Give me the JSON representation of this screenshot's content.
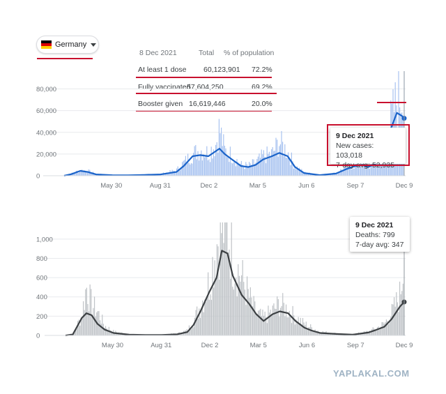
{
  "country_selector": {
    "label": "Germany",
    "flag_colors": [
      "#000000",
      "#dd0000",
      "#ffce00"
    ]
  },
  "vaccination": {
    "date": "8 Dec 2021",
    "col_total": "Total",
    "col_percent": "% of population",
    "rows": [
      {
        "label": "At least 1 dose",
        "total": "60,123,901",
        "percent": "72.2%"
      },
      {
        "label": "Fully vaccinated",
        "total": "57,604,250",
        "percent": "69.2%"
      },
      {
        "label": "Booster given",
        "total": "16,619,446",
        "percent": "20.0%"
      }
    ]
  },
  "cases_tooltip": {
    "date": "9 Dec 2021",
    "line1": "New cases: 103,018",
    "line2": "7-day avg: 52,935"
  },
  "deaths_tooltip": {
    "date": "9 Dec 2021",
    "line1": "Deaths: 799",
    "line2": "7-day avg: 347"
  },
  "watermark": "YAPLAKAL.COM",
  "colors": {
    "cases_bar": "#a8c3f0",
    "cases_line": "#1a63c9",
    "deaths_bar": "#bfc3c7",
    "deaths_line": "#3c4043",
    "highlight": "#c8102e"
  },
  "chart_data": [
    {
      "type": "line",
      "x_axis_labels": [
        "May 30",
        "Aug 31",
        "Dec 2",
        "Mar 5",
        "Jun 6",
        "Sep 7",
        "Dec 9"
      ],
      "y_ticks": [
        0,
        20000,
        40000,
        60000,
        80000
      ],
      "y_tick_labels": [
        "0",
        "20,000",
        "40,000",
        "60,000",
        "80,000"
      ],
      "ylim": [
        0,
        90000
      ],
      "series": [
        {
          "name": "New cases",
          "style": "bars",
          "x": [
            "2020-03-01",
            "2020-03-15",
            "2020-04-01",
            "2020-04-15",
            "2020-05-01",
            "2020-06-01",
            "2020-07-01",
            "2020-08-01",
            "2020-09-01",
            "2020-10-01",
            "2020-10-15",
            "2020-11-01",
            "2020-11-15",
            "2020-12-01",
            "2020-12-15",
            "2020-12-22",
            "2021-01-01",
            "2021-01-15",
            "2021-02-01",
            "2021-02-15",
            "2021-03-01",
            "2021-03-15",
            "2021-04-01",
            "2021-04-15",
            "2021-05-01",
            "2021-05-15",
            "2021-06-01",
            "2021-07-01",
            "2021-08-01",
            "2021-08-20",
            "2021-09-07",
            "2021-09-20",
            "2021-10-01",
            "2021-10-15",
            "2021-11-01",
            "2021-11-15",
            "2021-11-25",
            "2021-12-05",
            "2021-12-09"
          ],
          "values": [
            0,
            2000,
            5000,
            4500,
            1500,
            700,
            500,
            1200,
            1500,
            5000,
            12000,
            20000,
            24000,
            21000,
            29000,
            44000,
            23000,
            19000,
            10000,
            9000,
            12000,
            18000,
            20000,
            31000,
            22000,
            9000,
            3000,
            700,
            2500,
            8000,
            10000,
            11000,
            9000,
            12000,
            28000,
            53000,
            70000,
            76000,
            103018
          ]
        },
        {
          "name": "7-day avg",
          "style": "line",
          "x": [
            "2020-03-01",
            "2020-03-15",
            "2020-04-01",
            "2020-04-15",
            "2020-05-01",
            "2020-06-01",
            "2020-07-01",
            "2020-08-01",
            "2020-09-01",
            "2020-10-01",
            "2020-10-15",
            "2020-11-01",
            "2020-11-15",
            "2020-12-01",
            "2020-12-22",
            "2021-01-01",
            "2021-01-15",
            "2021-02-01",
            "2021-02-15",
            "2021-03-01",
            "2021-03-15",
            "2021-04-01",
            "2021-04-15",
            "2021-05-01",
            "2021-05-15",
            "2021-06-01",
            "2021-07-01",
            "2021-08-01",
            "2021-08-20",
            "2021-09-07",
            "2021-09-20",
            "2021-10-01",
            "2021-10-15",
            "2021-11-01",
            "2021-11-15",
            "2021-11-25",
            "2021-12-05",
            "2021-12-09"
          ],
          "values": [
            0,
            1500,
            4500,
            3500,
            1200,
            500,
            400,
            800,
            1200,
            3500,
            9000,
            18000,
            19000,
            18000,
            25000,
            20000,
            15000,
            9000,
            8000,
            10000,
            15000,
            18000,
            21000,
            18000,
            8000,
            2500,
            600,
            2000,
            6000,
            9000,
            10000,
            8000,
            11000,
            25000,
            45000,
            58000,
            55000,
            52935
          ]
        }
      ]
    },
    {
      "type": "line",
      "x_axis_labels": [
        "May 30",
        "Aug 31",
        "Dec 2",
        "Mar 5",
        "Jun 6",
        "Sep 7",
        "Dec 9"
      ],
      "y_ticks": [
        0,
        200,
        400,
        600,
        800,
        1000
      ],
      "y_tick_labels": [
        "0",
        "200",
        "400",
        "600",
        "800",
        "1,000"
      ],
      "ylim": [
        0,
        1100
      ],
      "series": [
        {
          "name": "Deaths",
          "style": "bars",
          "x": [
            "2020-03-01",
            "2020-03-15",
            "2020-04-01",
            "2020-04-10",
            "2020-04-20",
            "2020-05-01",
            "2020-05-15",
            "2020-06-01",
            "2020-07-01",
            "2020-08-01",
            "2020-09-01",
            "2020-10-01",
            "2020-10-20",
            "2020-11-01",
            "2020-11-15",
            "2020-12-01",
            "2020-12-15",
            "2020-12-25",
            "2021-01-05",
            "2021-01-15",
            "2021-02-01",
            "2021-02-15",
            "2021-03-01",
            "2021-03-15",
            "2021-04-01",
            "2021-04-15",
            "2021-05-01",
            "2021-05-15",
            "2021-06-01",
            "2021-06-15",
            "2021-07-01",
            "2021-08-01",
            "2021-09-01",
            "2021-10-01",
            "2021-10-15",
            "2021-11-01",
            "2021-11-15",
            "2021-12-01",
            "2021-12-09"
          ],
          "values": [
            0,
            20,
            200,
            510,
            320,
            250,
            100,
            40,
            10,
            5,
            8,
            20,
            50,
            150,
            320,
            550,
            950,
            1120,
            1130,
            800,
            600,
            400,
            230,
            180,
            250,
            330,
            260,
            190,
            120,
            80,
            40,
            20,
            10,
            40,
            70,
            120,
            230,
            420,
            799
          ]
        },
        {
          "name": "7-day avg",
          "style": "line",
          "x": [
            "2020-03-01",
            "2020-03-15",
            "2020-04-01",
            "2020-04-10",
            "2020-04-20",
            "2020-05-01",
            "2020-05-15",
            "2020-06-01",
            "2020-07-01",
            "2020-08-01",
            "2020-09-01",
            "2020-10-01",
            "2020-10-20",
            "2020-11-01",
            "2020-11-15",
            "2020-12-01",
            "2020-12-15",
            "2020-12-25",
            "2021-01-05",
            "2021-01-15",
            "2021-02-01",
            "2021-02-15",
            "2021-03-01",
            "2021-03-15",
            "2021-04-01",
            "2021-04-15",
            "2021-05-01",
            "2021-05-15",
            "2021-06-01",
            "2021-06-15",
            "2021-07-01",
            "2021-08-01",
            "2021-09-01",
            "2021-10-01",
            "2021-10-15",
            "2021-11-01",
            "2021-11-15",
            "2021-12-01",
            "2021-12-09"
          ],
          "values": [
            0,
            10,
            180,
            230,
            210,
            120,
            60,
            25,
            8,
            4,
            5,
            12,
            35,
            110,
            260,
            450,
            600,
            880,
            850,
            620,
            420,
            330,
            220,
            150,
            220,
            250,
            230,
            150,
            80,
            50,
            25,
            15,
            8,
            30,
            55,
            90,
            170,
            300,
            347
          ]
        }
      ]
    }
  ]
}
